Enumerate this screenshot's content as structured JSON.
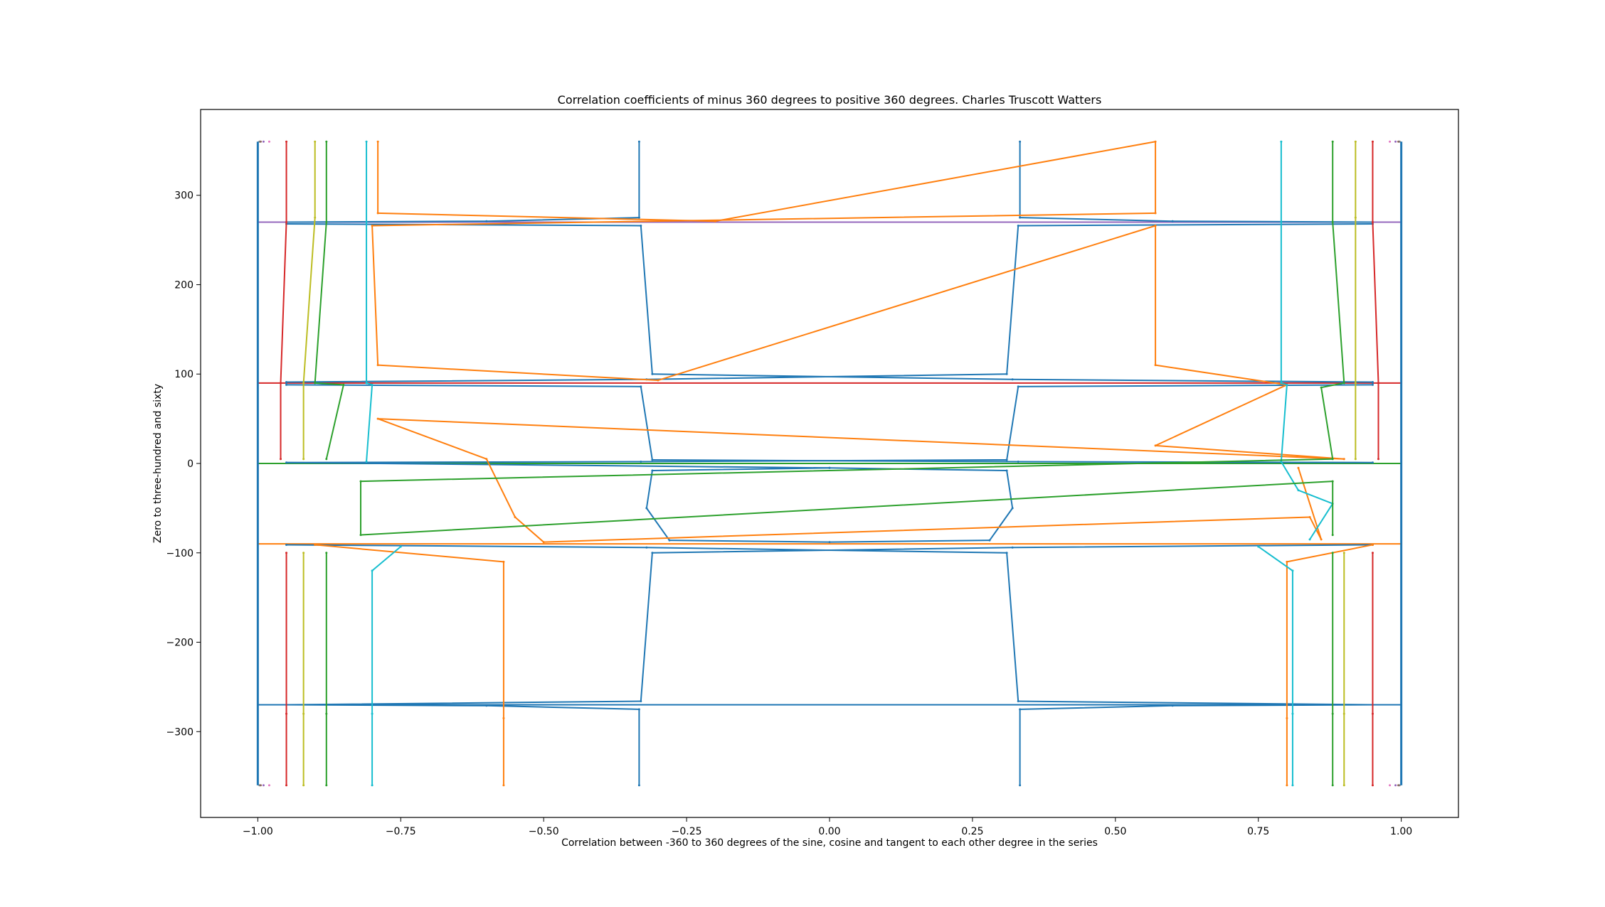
{
  "chart_data": {
    "type": "line",
    "title": "Correlation coefficients of minus 360 degrees to positive 360 degrees. Charles Truscott Watters",
    "xlabel": "Correlation between -360 to 360 degrees of the sine, cosine and tangent to each other degree in the series",
    "ylabel": "Zero to three-hundred and sixty",
    "xlim": [
      -1.1,
      1.1
    ],
    "ylim": [
      -396,
      396
    ],
    "x_ticks": [
      -1.0,
      -0.75,
      -0.5,
      -0.25,
      0.0,
      0.25,
      0.5,
      0.75,
      1.0
    ],
    "x_tick_labels": [
      "−1.00",
      "−0.75",
      "−0.50",
      "−0.25",
      "0.00",
      "0.25",
      "0.50",
      "0.75",
      "1.00"
    ],
    "y_ticks": [
      -300,
      -200,
      -100,
      0,
      100,
      200,
      300
    ],
    "y_tick_labels": [
      "−300",
      "−200",
      "−100",
      "0",
      "100",
      "200",
      "300"
    ],
    "grid": false,
    "legend": "none",
    "y_range_of_series": [
      -360,
      360
    ],
    "horizontal_asymptotes": [
      -270,
      -90,
      0,
      90,
      270
    ],
    "colors": [
      "#1f77b4",
      "#ff7f0e",
      "#2ca02c",
      "#d62728",
      "#9467bd",
      "#8c564b",
      "#e377c2",
      "#7f7f7f",
      "#bcbd22",
      "#17becf"
    ],
    "series": [
      {
        "color": "#1f77b4",
        "values": [
          [
            0.333,
            360
          ],
          [
            0.333,
            275
          ],
          [
            0.6,
            271
          ],
          [
            0.95,
            270
          ],
          [
            0.95,
            268
          ],
          [
            0.33,
            266
          ],
          [
            0.31,
            100
          ],
          [
            -0.32,
            94
          ],
          [
            -0.95,
            91
          ],
          [
            -0.95,
            88
          ],
          [
            -0.33,
            86
          ],
          [
            -0.31,
            4
          ],
          [
            0.33,
            2
          ],
          [
            0.95,
            1
          ],
          [
            -0.333,
            360
          ],
          [
            -0.333,
            275
          ],
          [
            -0.6,
            271
          ],
          [
            -0.95,
            270
          ],
          [
            -0.95,
            268
          ],
          [
            -0.33,
            266
          ],
          [
            -0.31,
            100
          ],
          [
            0.32,
            94
          ],
          [
            0.95,
            91
          ],
          [
            0.95,
            88
          ],
          [
            0.33,
            86
          ],
          [
            0.31,
            4
          ],
          [
            -0.33,
            2
          ],
          [
            -0.95,
            1
          ],
          [
            0.0,
            -5
          ],
          [
            0.31,
            -8
          ],
          [
            0.32,
            -50
          ],
          [
            0.28,
            -86
          ],
          [
            0.0,
            -88
          ],
          [
            -0.28,
            -86
          ],
          [
            -0.32,
            -50
          ],
          [
            -0.31,
            -8
          ],
          [
            0.0,
            -5
          ],
          [
            0.333,
            -360
          ],
          [
            0.333,
            -275
          ],
          [
            0.6,
            -271
          ],
          [
            0.95,
            -270
          ],
          [
            0.33,
            -266
          ],
          [
            0.31,
            -100
          ],
          [
            -0.32,
            -94
          ],
          [
            -0.95,
            -91
          ],
          [
            -0.333,
            -360
          ],
          [
            -0.333,
            -275
          ],
          [
            -0.6,
            -271
          ],
          [
            -0.95,
            -270
          ],
          [
            -0.33,
            -266
          ],
          [
            -0.31,
            -100
          ],
          [
            0.32,
            -94
          ],
          [
            0.95,
            -91
          ]
        ]
      },
      {
        "color": "#ff7f0e",
        "values": [
          [
            -0.79,
            360
          ],
          [
            -0.79,
            280
          ],
          [
            -0.2,
            271
          ],
          [
            0.57,
            360
          ],
          [
            0.57,
            280
          ],
          [
            -0.8,
            266
          ],
          [
            -0.79,
            110
          ],
          [
            -0.3,
            93
          ],
          [
            0.57,
            266
          ],
          [
            0.57,
            110
          ],
          [
            0.8,
            88
          ],
          [
            0.57,
            20
          ],
          [
            0.9,
            5
          ],
          [
            -0.79,
            50
          ],
          [
            -0.6,
            5
          ],
          [
            -0.55,
            -60
          ],
          [
            -0.5,
            -88
          ],
          [
            0.84,
            -60
          ],
          [
            0.86,
            -85
          ],
          [
            0.82,
            -5
          ],
          [
            -0.57,
            -360
          ],
          [
            -0.57,
            -285
          ],
          [
            -0.57,
            -110
          ],
          [
            -0.9,
            -91
          ],
          [
            0.8,
            -360
          ],
          [
            0.8,
            -285
          ],
          [
            0.8,
            -110
          ],
          [
            0.95,
            -91
          ]
        ]
      },
      {
        "color": "#17becf",
        "values": [
          [
            -0.81,
            360
          ],
          [
            -0.81,
            270
          ],
          [
            -0.81,
            90
          ],
          [
            -0.8,
            88
          ],
          [
            -0.81,
            2
          ],
          [
            0.79,
            360
          ],
          [
            0.79,
            270
          ],
          [
            0.79,
            90
          ],
          [
            0.8,
            88
          ],
          [
            0.79,
            2
          ],
          [
            0.82,
            -30
          ],
          [
            0.88,
            -45
          ],
          [
            0.84,
            -85
          ],
          [
            -0.8,
            -360
          ],
          [
            -0.8,
            -280
          ],
          [
            -0.8,
            -120
          ],
          [
            -0.75,
            -93
          ],
          [
            0.81,
            -360
          ],
          [
            0.81,
            -280
          ],
          [
            0.81,
            -120
          ],
          [
            0.75,
            -93
          ]
        ]
      },
      {
        "color": "#2ca02c",
        "values": [
          [
            -0.88,
            360
          ],
          [
            -0.88,
            270
          ],
          [
            -0.9,
            90
          ],
          [
            -0.85,
            88
          ],
          [
            -0.88,
            5
          ],
          [
            0.88,
            360
          ],
          [
            0.88,
            270
          ],
          [
            0.9,
            90
          ],
          [
            0.86,
            85
          ],
          [
            0.88,
            5
          ],
          [
            -0.82,
            -20
          ],
          [
            -0.82,
            -80
          ],
          [
            0.88,
            -20
          ],
          [
            0.88,
            -80
          ],
          [
            -0.88,
            -360
          ],
          [
            -0.88,
            -280
          ],
          [
            -0.88,
            -100
          ],
          [
            0.88,
            -360
          ],
          [
            0.88,
            -280
          ],
          [
            0.88,
            -100
          ]
        ]
      },
      {
        "color": "#bcbd22",
        "values": [
          [
            -0.9,
            360
          ],
          [
            -0.9,
            275
          ],
          [
            -0.92,
            90
          ],
          [
            -0.92,
            5
          ],
          [
            0.92,
            360
          ],
          [
            0.92,
            275
          ],
          [
            0.92,
            90
          ],
          [
            0.92,
            5
          ],
          [
            -0.92,
            -360
          ],
          [
            -0.92,
            -280
          ],
          [
            -0.92,
            -100
          ],
          [
            0.9,
            -360
          ],
          [
            0.9,
            -280
          ],
          [
            0.9,
            -100
          ]
        ]
      },
      {
        "color": "#d62728",
        "values": [
          [
            -0.95,
            360
          ],
          [
            -0.95,
            270
          ],
          [
            -0.96,
            90
          ],
          [
            -0.96,
            5
          ],
          [
            0.95,
            360
          ],
          [
            0.95,
            270
          ],
          [
            0.96,
            90
          ],
          [
            0.96,
            5
          ],
          [
            -0.95,
            -360
          ],
          [
            -0.95,
            -280
          ],
          [
            -0.95,
            -100
          ],
          [
            0.95,
            -360
          ],
          [
            0.95,
            -280
          ],
          [
            0.95,
            -100
          ]
        ]
      },
      {
        "color": "#e377c2",
        "values": [
          [
            -0.98,
            360
          ],
          [
            -0.98,
            -360
          ],
          [
            0.98,
            360
          ],
          [
            0.98,
            -360
          ]
        ]
      },
      {
        "color": "#9467bd",
        "values": [
          [
            -0.99,
            360
          ],
          [
            -0.99,
            -360
          ],
          [
            0.99,
            360
          ],
          [
            0.99,
            -360
          ]
        ]
      },
      {
        "color": "#8c564b",
        "values": [
          [
            -0.995,
            360
          ],
          [
            -0.995,
            -360
          ],
          [
            0.995,
            360
          ],
          [
            0.995,
            -360
          ]
        ]
      },
      {
        "color": "#7f7f7f",
        "values": [
          [
            -0.997,
            360
          ],
          [
            -0.997,
            -360
          ],
          [
            0.997,
            360
          ],
          [
            0.997,
            -360
          ]
        ]
      }
    ]
  }
}
